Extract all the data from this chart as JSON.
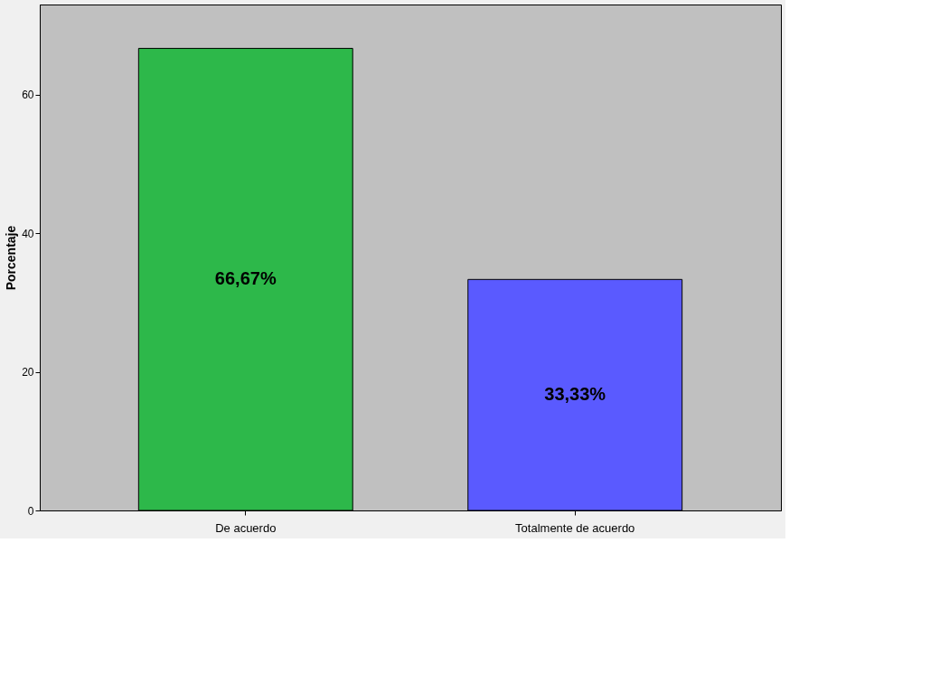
{
  "chart_data": {
    "type": "bar",
    "ylabel": "Porcentaje",
    "categories": [
      "De acuerdo",
      "Totalmente de acuerdo"
    ],
    "values": [
      66.67,
      33.33
    ],
    "colors": [
      "#2db84a",
      "#5a5aff"
    ],
    "value_labels": [
      "66,67%",
      "33,33%"
    ],
    "ylim": [
      0,
      73
    ],
    "yticks": [
      0,
      20,
      40,
      60
    ],
    "grid": false,
    "legend": false
  }
}
